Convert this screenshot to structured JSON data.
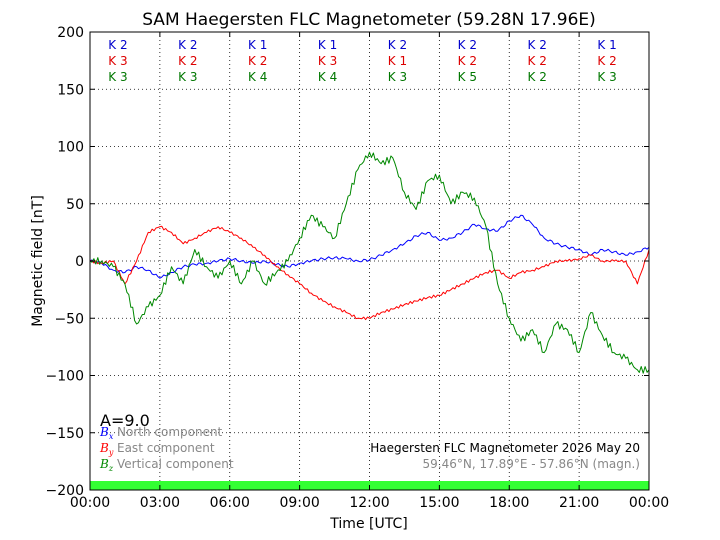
{
  "chart_data": {
    "type": "line",
    "title": "SAM Haegersten FLC Magnetometer (59.28N 17.96E)",
    "xlabel": "Time [UTC]",
    "ylabel": "Magnetic field [nT]",
    "xlim": [
      0,
      24
    ],
    "ylim": [
      -200,
      200
    ],
    "x_ticks": [
      0,
      3,
      6,
      9,
      12,
      15,
      18,
      21,
      24
    ],
    "x_tick_labels": [
      "00:00",
      "03:00",
      "06:00",
      "09:00",
      "12:00",
      "15:00",
      "18:00",
      "21:00",
      "00:00"
    ],
    "y_ticks": [
      -200,
      -150,
      -100,
      -50,
      0,
      50,
      100,
      150,
      200
    ],
    "y_tick_labels": [
      "−200",
      "−150",
      "−100",
      "−50",
      "0",
      "50",
      "100",
      "150",
      "200"
    ],
    "grid": true,
    "k_rows": [
      {
        "color": "#0000cc",
        "values": [
          "K 2",
          "K 2",
          "K 1",
          "K 1",
          "K 2",
          "K 2",
          "K 2",
          "K 1"
        ]
      },
      {
        "color": "#dd0000",
        "values": [
          "K 3",
          "K 2",
          "K 2",
          "K 3",
          "K 1",
          "K 2",
          "K 2",
          "K 2"
        ]
      },
      {
        "color": "#007700",
        "values": [
          "K 3",
          "K 3",
          "K 4",
          "K 4",
          "K 3",
          "K 5",
          "K 2",
          "K 3"
        ]
      }
    ],
    "activity_index": "A=9.0",
    "series": [
      {
        "name": "North component",
        "symbol": "B",
        "subscript": "x",
        "color": "#0000ff",
        "x": [
          0,
          0.5,
          1,
          1.5,
          2,
          2.5,
          3,
          3.5,
          4,
          4.5,
          5,
          5.5,
          6,
          6.5,
          7,
          7.5,
          8,
          8.5,
          9,
          9.5,
          10,
          10.5,
          11,
          11.5,
          12,
          12.5,
          13,
          13.5,
          14,
          14.5,
          15,
          15.5,
          16,
          16.5,
          17,
          17.5,
          18,
          18.5,
          19,
          19.5,
          20,
          20.5,
          21,
          21.5,
          22,
          22.5,
          23,
          23.5,
          24
        ],
        "values": [
          0,
          -2,
          -8,
          -10,
          -5,
          -8,
          -15,
          -10,
          -5,
          -3,
          -2,
          0,
          2,
          0,
          -2,
          0,
          -3,
          -5,
          -2,
          0,
          2,
          3,
          2,
          0,
          1,
          5,
          10,
          15,
          22,
          25,
          18,
          20,
          25,
          32,
          28,
          26,
          35,
          40,
          32,
          20,
          15,
          12,
          10,
          5,
          10,
          8,
          5,
          8,
          12
        ]
      },
      {
        "name": "East component",
        "symbol": "B",
        "subscript": "y",
        "color": "#ff0000",
        "x": [
          0,
          0.5,
          1,
          1.5,
          2,
          2.5,
          3,
          3.5,
          4,
          4.5,
          5,
          5.5,
          6,
          6.5,
          7,
          7.5,
          8,
          8.5,
          9,
          9.5,
          10,
          10.5,
          11,
          11.5,
          12,
          12.5,
          13,
          13.5,
          14,
          14.5,
          15,
          15.5,
          16,
          16.5,
          17,
          17.5,
          18,
          18.5,
          19,
          19.5,
          20,
          20.5,
          21,
          21.5,
          22,
          22.5,
          23,
          23.5,
          24
        ],
        "values": [
          0,
          -2,
          0,
          -20,
          0,
          25,
          30,
          25,
          15,
          20,
          25,
          30,
          25,
          20,
          12,
          5,
          -5,
          -12,
          -20,
          -28,
          -35,
          -40,
          -45,
          -50,
          -50,
          -45,
          -42,
          -38,
          -35,
          -32,
          -30,
          -25,
          -20,
          -15,
          -10,
          -8,
          -15,
          -10,
          -8,
          -5,
          0,
          0,
          2,
          5,
          0,
          0,
          0,
          -20,
          10
        ]
      },
      {
        "name": "Vertical component",
        "symbol": "B",
        "subscript": "z",
        "color": "#008800",
        "x": [
          0,
          0.5,
          1,
          1.5,
          2,
          2.5,
          3,
          3.5,
          4,
          4.5,
          5,
          5.5,
          6,
          6.5,
          7,
          7.5,
          8,
          8.5,
          9,
          9.5,
          10,
          10.5,
          11,
          11.5,
          12,
          12.5,
          13,
          13.5,
          14,
          14.5,
          15,
          15.5,
          16,
          16.5,
          17,
          17.5,
          18,
          18.5,
          19,
          19.5,
          20,
          20.5,
          21,
          21.5,
          22,
          22.5,
          23,
          23.5,
          24
        ],
        "values": [
          0,
          0,
          -5,
          -20,
          -55,
          -40,
          -30,
          -5,
          -20,
          10,
          -5,
          -15,
          0,
          -20,
          0,
          -20,
          -10,
          0,
          20,
          40,
          30,
          20,
          50,
          80,
          95,
          85,
          90,
          60,
          45,
          70,
          75,
          50,
          60,
          55,
          30,
          -20,
          -50,
          -70,
          -60,
          -80,
          -55,
          -60,
          -80,
          -45,
          -65,
          -80,
          -85,
          -95,
          -95
        ]
      }
    ],
    "legend_placement": "lower-left",
    "station_label": "Haegersten FLC Magnetometer 2026 May 20",
    "coords_label": "59.46°N, 17.89°E - 57.86°N (magn.)",
    "status_bar_color": "#33ff33"
  }
}
